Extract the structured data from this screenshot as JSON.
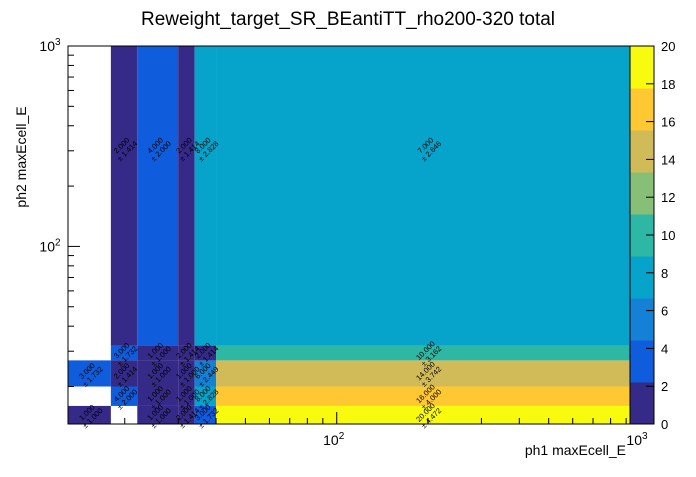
{
  "chart_data": {
    "type": "heatmap",
    "title": "Reweight_target_SR_BEantiTT_rho200-320 total",
    "xlabel": "ph1 maxEcell_E",
    "ylabel": "ph2 maxEcell_E",
    "xscale": "log",
    "yscale": "log",
    "xlim": [
      13,
      1000
    ],
    "ylim": [
      13,
      1000
    ],
    "zlim": [
      0,
      20
    ],
    "x_ticks": [
      {
        "value": 100,
        "base": "10",
        "exp": "2"
      },
      {
        "value": 1000,
        "base": "10",
        "exp": "3"
      }
    ],
    "y_ticks": [
      {
        "value": 100,
        "base": "10",
        "exp": "2"
      },
      {
        "value": 1000,
        "base": "10",
        "exp": "3"
      }
    ],
    "colorbar_ticks": [
      "0",
      "2",
      "4",
      "6",
      "8",
      "10",
      "12",
      "14",
      "16",
      "18",
      "20"
    ],
    "palette": [
      "#352a87",
      "#0f5cdd",
      "#1481d6",
      "#06a4ca",
      "#2eb7a4",
      "#87bf77",
      "#d1bb59",
      "#fec832",
      "#f9fb0e"
    ],
    "x_edges": [
      13,
      18,
      22,
      30,
      34,
      40,
      1000
    ],
    "y_edges": [
      13,
      16,
      20,
      27,
      32,
      40,
      1000
    ],
    "cells": [
      {
        "x": [
          13,
          18
        ],
        "y": [
          13,
          16
        ],
        "value": 1,
        "label": "1.000",
        "err": "± 1.000"
      },
      {
        "x": [
          22,
          30
        ],
        "y": [
          13,
          16
        ],
        "value": 1,
        "label": "1.000",
        "err": "± 1.000"
      },
      {
        "x": [
          30,
          34
        ],
        "y": [
          13,
          16
        ],
        "value": 2,
        "label": "2.000",
        "err": "± 1.414"
      },
      {
        "x": [
          34,
          40
        ],
        "y": [
          13,
          16
        ],
        "value": 3,
        "label": "3.000",
        "err": "± 1.732"
      },
      {
        "x": [
          40,
          1000
        ],
        "y": [
          13,
          16
        ],
        "value": 20,
        "label": "20.000",
        "err": "± 4.472"
      },
      {
        "x": [
          18,
          22
        ],
        "y": [
          16,
          20
        ],
        "value": 4,
        "label": "4.000",
        "err": "± 2.000"
      },
      {
        "x": [
          22,
          30
        ],
        "y": [
          16,
          20
        ],
        "value": 1,
        "label": "1.000",
        "err": "± 1.000"
      },
      {
        "x": [
          30,
          34
        ],
        "y": [
          16,
          20
        ],
        "value": 1,
        "label": "1.000",
        "err": "± 1.000"
      },
      {
        "x": [
          34,
          40
        ],
        "y": [
          16,
          20
        ],
        "value": 8,
        "label": "8.000",
        "err": "± 2.828"
      },
      {
        "x": [
          40,
          1000
        ],
        "y": [
          16,
          20
        ],
        "value": 16,
        "label": "16.000",
        "err": "± 4.000"
      },
      {
        "x": [
          13,
          18
        ],
        "y": [
          20,
          27
        ],
        "value": 3,
        "label": "3.000",
        "err": "± 1.732"
      },
      {
        "x": [
          18,
          22
        ],
        "y": [
          20,
          27
        ],
        "value": 2,
        "label": "2.000",
        "err": "± 1.414"
      },
      {
        "x": [
          22,
          30
        ],
        "y": [
          20,
          27
        ],
        "value": 1,
        "label": "1.000",
        "err": "± 1.000"
      },
      {
        "x": [
          30,
          34
        ],
        "y": [
          20,
          27
        ],
        "value": 1,
        "label": "1.000",
        "err": "± 1.000"
      },
      {
        "x": [
          34,
          40
        ],
        "y": [
          20,
          27
        ],
        "value": 6,
        "label": "6.000",
        "err": "± 2.449"
      },
      {
        "x": [
          40,
          1000
        ],
        "y": [
          20,
          27
        ],
        "value": 14,
        "label": "14.000",
        "err": "± 3.742"
      },
      {
        "x": [
          18,
          22
        ],
        "y": [
          27,
          32
        ],
        "value": 3,
        "label": "3.000",
        "err": "± 1.732"
      },
      {
        "x": [
          22,
          30
        ],
        "y": [
          27,
          32
        ],
        "value": 1,
        "label": "1.000",
        "err": "± 1.000"
      },
      {
        "x": [
          30,
          34
        ],
        "y": [
          27,
          32
        ],
        "value": 2,
        "label": "2.000",
        "err": "± 1.414"
      },
      {
        "x": [
          34,
          40
        ],
        "y": [
          27,
          32
        ],
        "value": 2,
        "label": "2.000",
        "err": "± 1.414"
      },
      {
        "x": [
          40,
          1000
        ],
        "y": [
          27,
          32
        ],
        "value": 10,
        "label": "10.000",
        "err": "± 3.162"
      },
      {
        "x": [
          18,
          22
        ],
        "y": [
          32,
          1000
        ],
        "value": 2,
        "label": "2.000",
        "err": "± 1.414"
      },
      {
        "x": [
          22,
          30
        ],
        "y": [
          32,
          1000
        ],
        "value": 4,
        "label": "4.000",
        "err": "± 2.000"
      },
      {
        "x": [
          30,
          34
        ],
        "y": [
          32,
          1000
        ],
        "value": 2,
        "label": "2.000",
        "err": "± 1.414"
      },
      {
        "x": [
          34,
          40
        ],
        "y": [
          32,
          1000
        ],
        "value": 8,
        "label": "8.000",
        "err": "± 2.828"
      },
      {
        "x": [
          40,
          1000
        ],
        "y": [
          32,
          1000
        ],
        "value": 7,
        "label": "7.000",
        "err": "± 2.646"
      }
    ]
  }
}
